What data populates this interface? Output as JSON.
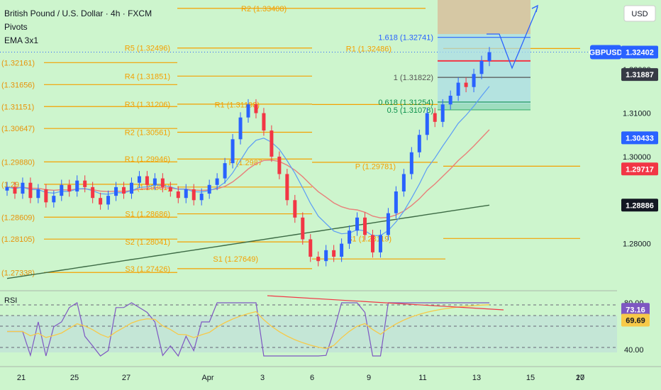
{
  "legend": {
    "title": "British Pound / U.S. Dollar · 4h · FXCM",
    "line2": "Pivots",
    "line3": "EMA 3x1"
  },
  "currency_label": "USD",
  "symbol_tag": "GBPUSD",
  "rsi_label": "RSI",
  "colors": {
    "background": "#cdf5cd",
    "up": "#2962ff",
    "down": "#f23645",
    "pivot": "#f4a000",
    "ema_fast": "#5b9cf6",
    "ema_mid": "#e8807a",
    "ema_slow": "#3d6b45",
    "rsi": "#7e57c2",
    "rsi_ma": "#f7c948"
  },
  "chart_data": {
    "type": "candlestick",
    "symbol": "GBPUSD",
    "timeframe": "4h",
    "x_tick_labels": [
      "21",
      "25",
      "27",
      "Apr",
      "3",
      "6",
      "9",
      "11",
      "13",
      "15",
      "17",
      "20"
    ],
    "price_axis_ticks": [
      "1.32000",
      "1.31000",
      "1.30000",
      "1.28000"
    ],
    "price_axis_tags": [
      {
        "value": "1.32402",
        "kind": "current"
      },
      {
        "value": "1.31887",
        "kind": "dark"
      },
      {
        "value": "1.30433",
        "kind": "blue"
      },
      {
        "value": "1.29717",
        "kind": "red"
      },
      {
        "value": "1.28886",
        "kind": "black"
      }
    ],
    "ylim": [
      1.27,
      1.336
    ],
    "current_price": 1.32402,
    "pivot_levels_current": [
      {
        "label": "R2 (1.33408)",
        "value": 1.33408
      },
      {
        "label": "R5 (1.32496)",
        "value": 1.32496
      },
      {
        "label": "R1 (1.32486)",
        "value": 1.32486
      },
      {
        "label": "R4 (1.31851)",
        "value": 1.31851
      },
      {
        "label": "R3 (1.31206)",
        "value": 1.31206
      },
      {
        "label": "R1 (1.31198)",
        "value": 1.31198
      },
      {
        "label": "R2 (1.30561)",
        "value": 1.30561
      },
      {
        "label": "R1 (1.29946)",
        "value": 1.29946
      },
      {
        "label": "P (1.2987",
        "value": 1.2987
      },
      {
        "label": "P (1.29781)",
        "value": 1.29781
      },
      {
        "label": "(1.29301)",
        "value": 1.29301
      },
      {
        "label": "S1 (1.28686)",
        "value": 1.28686
      },
      {
        "label": "S2 (1.28041)",
        "value": 1.28041
      },
      {
        "label": "S1 (1.28119)",
        "value": 1.28119
      },
      {
        "label": "S1 (1.27649)",
        "value": 1.27649
      },
      {
        "label": "S3 (1.27426)",
        "value": 1.27426
      }
    ],
    "pivot_levels_left": [
      "(1.32161)",
      "(1.31656)",
      "(1.31151)",
      "(1.30647)",
      "(1.29880)",
      "(1.29",
      "(1.28609)",
      "(1.28105)",
      "(1.27338)"
    ],
    "fib_levels": [
      {
        "label": "1.618 (1.32741)",
        "value": 1.32741
      },
      {
        "label": "1 (1.31822)",
        "value": 1.31822
      },
      {
        "label": "0.618 (1.31254)",
        "value": 1.31254
      },
      {
        "label": "0.5 (1.31078)",
        "value": 1.31078
      }
    ],
    "candles_close": [
      1.293,
      1.2915,
      1.294,
      1.2905,
      1.2925,
      1.2895,
      1.291,
      1.2935,
      1.292,
      1.2945,
      1.293,
      1.2905,
      1.289,
      1.291,
      1.293,
      1.2915,
      1.294,
      1.2955,
      1.2935,
      1.295,
      1.293,
      1.292,
      1.2905,
      1.2925,
      1.29,
      1.2915,
      1.2935,
      1.295,
      1.2985,
      1.304,
      1.309,
      1.312,
      1.31,
      1.306,
      1.3,
      1.296,
      1.29,
      1.286,
      1.281,
      1.277,
      1.276,
      1.2785,
      1.277,
      1.28,
      1.283,
      1.286,
      1.282,
      1.278,
      1.282,
      1.287,
      1.292,
      1.296,
      1.301,
      1.305,
      1.31,
      1.308,
      1.312,
      1.314,
      1.317,
      1.316,
      1.319,
      1.322,
      1.324
    ],
    "ema_fast_last": 1.30433,
    "ema_mid_last": 1.29717,
    "ema_slow_last": 1.28886,
    "rsi": {
      "label": "RSI",
      "ticks": [
        "80.00",
        "40.00"
      ],
      "value_tags": [
        "73.16",
        "69.69"
      ],
      "ylim": [
        30,
        90
      ]
    }
  }
}
